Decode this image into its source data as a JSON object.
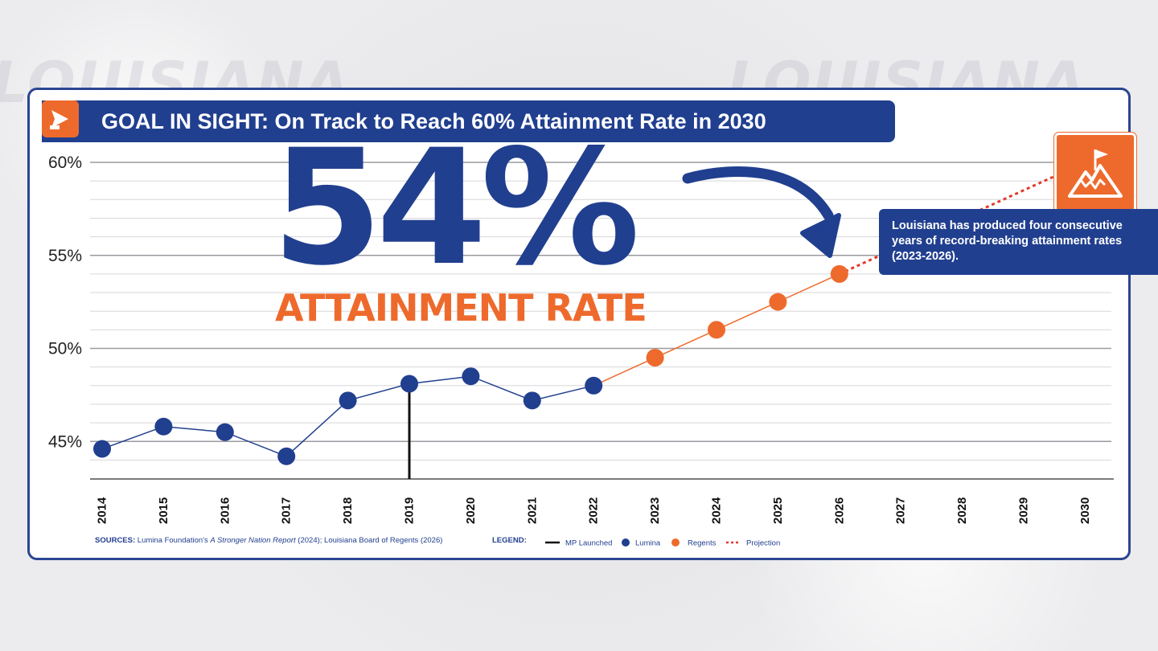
{
  "title": "GOAL IN SIGHT: On Track to Reach 60% Attainment Rate in 2030",
  "watermark": "LOUISIANA",
  "highlight": {
    "value": "54%",
    "label": "ATTAINMENT RATE"
  },
  "callout": "Louisiana has produced four consecutive years of record-breaking attainment rates (2023-2026).",
  "sources": {
    "label": "SOURCES:",
    "text_before": "Lumina Foundation's ",
    "italic": "A Stronger Nation Report",
    "text_after": " (2024); Louisiana Board of Regents (2026)"
  },
  "legend": {
    "label": "LEGEND:",
    "items": [
      "MP Launched",
      "Lumina",
      "Regents",
      "Projection"
    ]
  },
  "colors": {
    "lumina": "#213f8f",
    "regents": "#ee6a2c",
    "projection": "#e03a2a",
    "mp_launched": "#111111",
    "title_bar": "#213f8f",
    "accent": "#ee6a2c"
  },
  "icons": [
    "play-arrow-icon",
    "mountain-flag-icon",
    "curved-arrow-icon"
  ],
  "chart_data": {
    "type": "line",
    "x": [
      "2014",
      "2015",
      "2016",
      "2017",
      "2018",
      "2019",
      "2020",
      "2021",
      "2022",
      "2023",
      "2024",
      "2025",
      "2026",
      "2027",
      "2028",
      "2029",
      "2030"
    ],
    "ylim": [
      43,
      60
    ],
    "yticks": [
      45,
      50,
      55,
      60
    ],
    "ytick_labels": [
      "45%",
      "50%",
      "55%",
      "60%"
    ],
    "grid": true,
    "legend_position": "bottom",
    "series": [
      {
        "name": "Lumina",
        "x": [
          "2014",
          "2015",
          "2016",
          "2017",
          "2018",
          "2019",
          "2020",
          "2021",
          "2022"
        ],
        "values": [
          44.6,
          45.8,
          45.5,
          44.2,
          47.2,
          48.1,
          48.5,
          47.2,
          48.0
        ]
      },
      {
        "name": "Regents",
        "x": [
          "2023",
          "2024",
          "2025",
          "2026"
        ],
        "values": [
          49.5,
          51.0,
          52.5,
          54.0
        ]
      },
      {
        "name": "Projection",
        "x": [
          "2026",
          "2030"
        ],
        "values": [
          54.0,
          60.0
        ]
      }
    ],
    "markers": [
      {
        "name": "MP Launched",
        "x": "2019"
      }
    ]
  }
}
